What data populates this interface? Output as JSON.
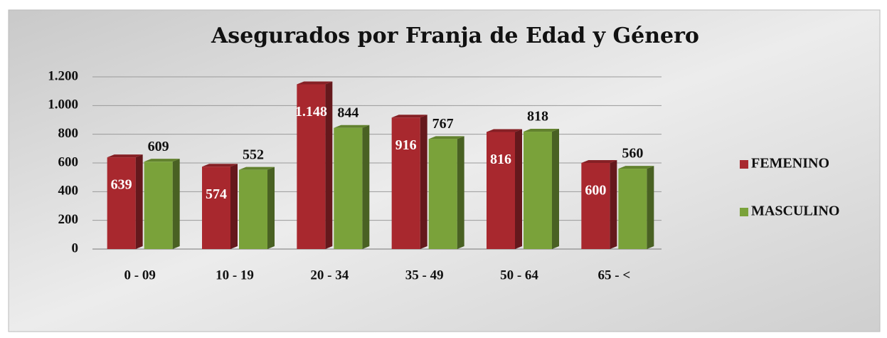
{
  "chart_data": {
    "type": "bar",
    "title": "Asegurados por Franja de Edad y Género",
    "categories": [
      "0 - 09",
      "10 - 19",
      "20 - 34",
      "35 - 49",
      "50 - 64",
      "65 - <"
    ],
    "series": [
      {
        "name": "FEMENINO",
        "color": "#a8282e",
        "values": [
          639,
          574,
          1148,
          916,
          816,
          600
        ],
        "value_labels": [
          "639",
          "574",
          "1.148",
          "916",
          "816",
          "600"
        ]
      },
      {
        "name": "MASCULINO",
        "color": "#7aa23a",
        "values": [
          609,
          552,
          844,
          767,
          818,
          560
        ]
      }
    ],
    "ylim": [
      0,
      1200
    ],
    "yticks": [
      0,
      200,
      400,
      600,
      800,
      {
        "value": 1000,
        "label": "1.000"
      },
      {
        "value": 1200,
        "label": "1.200"
      }
    ],
    "grid": true,
    "legend": "right"
  }
}
